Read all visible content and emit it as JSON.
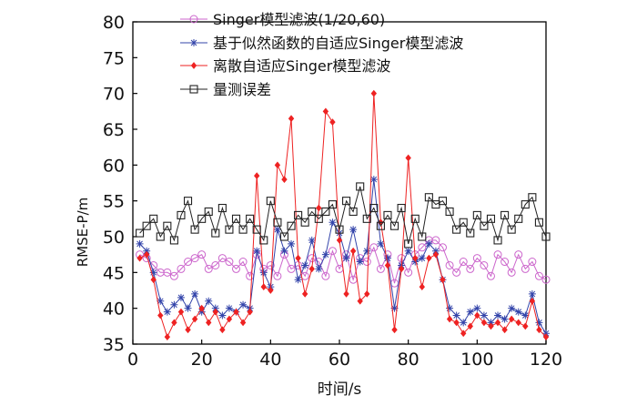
{
  "chart_data": {
    "type": "line",
    "xlabel": "时间/s",
    "ylabel": "RMSE-P/m",
    "xlim": [
      0,
      120
    ],
    "ylim": [
      35,
      80
    ],
    "xticks": [
      0,
      20,
      40,
      60,
      80,
      100,
      120
    ],
    "yticks": [
      35,
      40,
      45,
      50,
      55,
      60,
      65,
      70,
      75,
      80
    ],
    "grid": false,
    "legend_position": "top-left",
    "series": [
      {
        "name": "Singer模型滤波(1/20,60)",
        "color": "#cc66cc",
        "marker": "circle",
        "x": [
          2,
          4,
          6,
          8,
          10,
          12,
          14,
          16,
          18,
          20,
          22,
          24,
          26,
          28,
          30,
          32,
          34,
          36,
          38,
          40,
          42,
          44,
          46,
          48,
          50,
          52,
          54,
          56,
          58,
          60,
          62,
          64,
          66,
          68,
          70,
          72,
          74,
          76,
          78,
          80,
          82,
          84,
          86,
          88,
          90,
          92,
          94,
          96,
          98,
          100,
          102,
          104,
          106,
          108,
          110,
          112,
          114,
          116,
          118,
          120
        ],
        "y": [
          47.5,
          47.0,
          46.0,
          45.0,
          45.0,
          44.5,
          45.5,
          46.5,
          47.0,
          47.5,
          45.5,
          46.0,
          47.0,
          46.5,
          45.5,
          46.5,
          44.5,
          47.5,
          45.5,
          46.0,
          44.5,
          47.5,
          45.5,
          46.0,
          44.5,
          47.0,
          46.5,
          44.5,
          48.0,
          45.5,
          47.5,
          44.0,
          47.0,
          46.5,
          48.5,
          45.5,
          47.5,
          43.5,
          47.0,
          45.0,
          47.5,
          48.5,
          49.5,
          49.5,
          48.5,
          46.0,
          45.0,
          46.5,
          45.5,
          47.0,
          46.0,
          44.5,
          47.5,
          46.5,
          45.0,
          47.5,
          45.5,
          46.5,
          44.5,
          44.0
        ]
      },
      {
        "name": "基于似然函数的自适应Singer模型滤波",
        "color": "#3344aa",
        "marker": "star",
        "x": [
          2,
          4,
          6,
          8,
          10,
          12,
          14,
          16,
          18,
          20,
          22,
          24,
          26,
          28,
          30,
          32,
          34,
          36,
          38,
          40,
          42,
          44,
          46,
          48,
          50,
          52,
          54,
          56,
          58,
          60,
          62,
          64,
          66,
          68,
          70,
          72,
          74,
          76,
          78,
          80,
          82,
          84,
          86,
          88,
          90,
          92,
          94,
          96,
          98,
          100,
          102,
          104,
          106,
          108,
          110,
          112,
          114,
          116,
          118,
          120
        ],
        "y": [
          49.0,
          48.0,
          45.0,
          41.0,
          39.5,
          40.5,
          41.5,
          40.0,
          42.0,
          39.5,
          41.0,
          40.0,
          39.0,
          40.0,
          39.5,
          40.5,
          40.0,
          48.0,
          45.0,
          43.0,
          51.0,
          48.0,
          49.0,
          44.0,
          46.0,
          49.5,
          45.5,
          47.5,
          52.0,
          50.5,
          47.0,
          51.0,
          46.5,
          48.0,
          58.0,
          49.0,
          47.0,
          40.0,
          46.0,
          48.0,
          46.5,
          47.0,
          49.0,
          48.0,
          44.0,
          40.0,
          39.0,
          38.0,
          39.5,
          40.0,
          39.0,
          38.0,
          39.0,
          38.5,
          40.0,
          39.5,
          39.0,
          42.0,
          38.0,
          36.5
        ]
      },
      {
        "name": "离散自适应Singer模型滤波",
        "color": "#ee2222",
        "marker": "diamond",
        "x": [
          2,
          4,
          6,
          8,
          10,
          12,
          14,
          16,
          18,
          20,
          22,
          24,
          26,
          28,
          30,
          32,
          34,
          36,
          38,
          40,
          42,
          44,
          46,
          48,
          50,
          52,
          54,
          56,
          58,
          60,
          62,
          64,
          66,
          68,
          70,
          72,
          74,
          76,
          78,
          80,
          82,
          84,
          86,
          88,
          90,
          92,
          94,
          96,
          98,
          100,
          102,
          104,
          106,
          108,
          110,
          112,
          114,
          116,
          118,
          120
        ],
        "y": [
          47.0,
          47.5,
          44.0,
          39.0,
          36.0,
          38.0,
          39.5,
          37.0,
          38.5,
          40.0,
          38.0,
          39.5,
          37.0,
          38.5,
          39.5,
          38.0,
          39.5,
          58.5,
          43.0,
          42.5,
          60.0,
          58.0,
          66.5,
          47.0,
          42.0,
          45.5,
          54.0,
          67.5,
          66.0,
          49.5,
          42.0,
          48.0,
          41.0,
          42.0,
          70.0,
          52.0,
          46.0,
          37.0,
          45.5,
          61.0,
          47.0,
          43.0,
          47.0,
          47.5,
          44.0,
          38.5,
          38.0,
          36.5,
          37.5,
          39.0,
          38.0,
          37.5,
          38.0,
          37.0,
          38.5,
          38.0,
          37.5,
          41.0,
          37.0,
          36.0
        ]
      },
      {
        "name": "量测误差",
        "color": "#222222",
        "marker": "square",
        "x": [
          2,
          4,
          6,
          8,
          10,
          12,
          14,
          16,
          18,
          20,
          22,
          24,
          26,
          28,
          30,
          32,
          34,
          36,
          38,
          40,
          42,
          44,
          46,
          48,
          50,
          52,
          54,
          56,
          58,
          60,
          62,
          64,
          66,
          68,
          70,
          72,
          74,
          76,
          78,
          80,
          82,
          84,
          86,
          88,
          90,
          92,
          94,
          96,
          98,
          100,
          102,
          104,
          106,
          108,
          110,
          112,
          114,
          116,
          118,
          120
        ],
        "y": [
          50.5,
          51.5,
          52.5,
          50.0,
          51.5,
          49.5,
          53.0,
          55.0,
          51.0,
          52.5,
          53.5,
          50.5,
          54.0,
          51.0,
          52.5,
          51.0,
          52.5,
          51.0,
          49.5,
          55.0,
          52.0,
          50.0,
          51.5,
          53.0,
          52.0,
          53.5,
          52.5,
          53.5,
          54.5,
          51.0,
          55.0,
          53.5,
          57.0,
          52.5,
          54.0,
          51.5,
          53.0,
          51.5,
          54.0,
          49.0,
          52.5,
          50.0,
          55.5,
          54.5,
          55.0,
          53.5,
          51.0,
          52.0,
          50.5,
          53.0,
          51.5,
          52.5,
          49.5,
          53.0,
          51.0,
          52.5,
          54.5,
          55.5,
          52.0,
          50.0
        ]
      }
    ]
  }
}
